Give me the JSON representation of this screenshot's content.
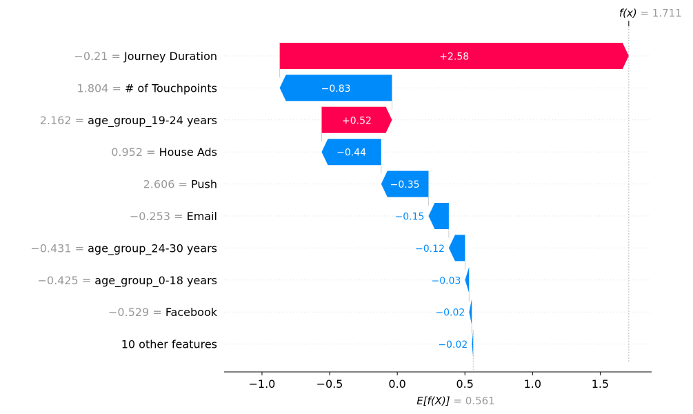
{
  "chart_data": {
    "type": "waterfall",
    "fx_label": "f(x)",
    "fx_value": "1.711",
    "base_label": "E[f(X)]",
    "base_value": "0.561",
    "base": 0.561,
    "final": 1.711,
    "xlim": [
      -1.28,
      1.88
    ],
    "x_ticks": [
      -1.0,
      -0.5,
      0.0,
      0.5,
      1.0,
      1.5
    ],
    "x_tick_labels": [
      "−1.0",
      "−0.5",
      "0.0",
      "0.5",
      "1.0",
      "1.5"
    ],
    "features": [
      {
        "value": "−0.21",
        "name": "Journey Duration",
        "start": -0.869,
        "end": 1.711,
        "label": "+2.58"
      },
      {
        "value": "1.804",
        "name": "# of Touchpoints",
        "start": -0.039,
        "end": -0.869,
        "label": "−0.83"
      },
      {
        "value": "2.162",
        "name": "age_group_19-24 years",
        "start": -0.559,
        "end": -0.039,
        "label": "+0.52"
      },
      {
        "value": "0.952",
        "name": "House Ads",
        "start": -0.119,
        "end": -0.559,
        "label": "−0.44"
      },
      {
        "value": "2.606",
        "name": "Push",
        "start": 0.231,
        "end": -0.119,
        "label": "−0.35"
      },
      {
        "value": "−0.253",
        "name": "Email",
        "start": 0.381,
        "end": 0.231,
        "label": "−0.15"
      },
      {
        "value": "−0.431",
        "name": "age_group_24-30 years",
        "start": 0.501,
        "end": 0.381,
        "label": "−0.12"
      },
      {
        "value": "−0.425",
        "name": "age_group_0-18 years",
        "start": 0.531,
        "end": 0.501,
        "label": "−0.03"
      },
      {
        "value": "−0.529",
        "name": "Facebook",
        "start": 0.551,
        "end": 0.531,
        "label": "−0.02"
      },
      {
        "value": "",
        "name": "10 other features",
        "start": 0.561,
        "end": 0.551,
        "label": "−0.02"
      }
    ],
    "colors": {
      "positive": "#ff0051",
      "negative": "#008bfb"
    }
  }
}
